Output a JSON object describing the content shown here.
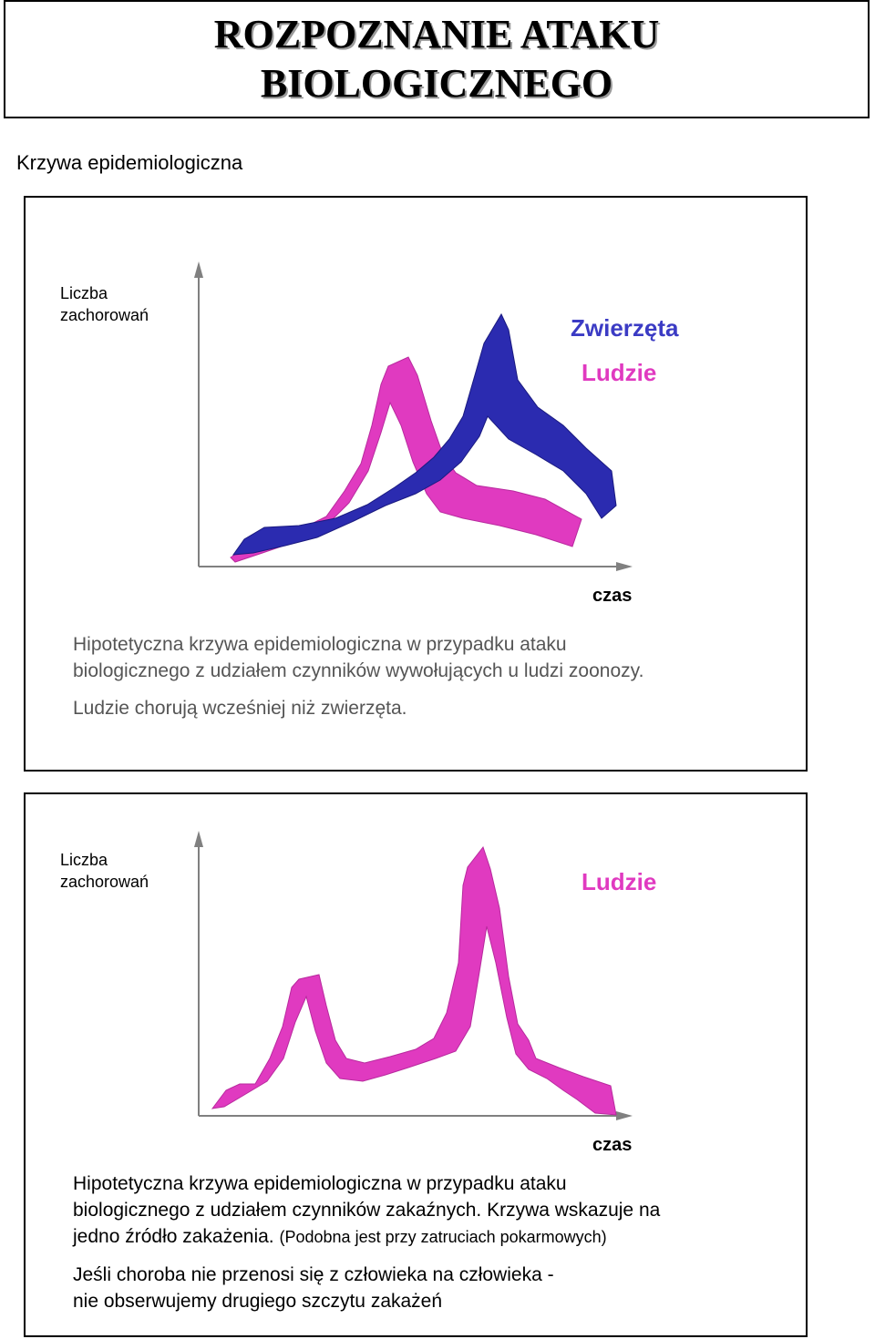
{
  "header": {
    "title_line1": "ROZPOZNANIE ATAKU",
    "title_line2": "BIOLOGICZNEGO"
  },
  "subtitle": "Krzywa epidemiologiczna",
  "colors": {
    "animals": "#2b2bb0",
    "humans": "#e03ac0",
    "caption_gray": "#555555"
  },
  "panel1": {
    "ylabel_line1": "Liczba",
    "ylabel_line2": "zachorowań",
    "xlabel": "czas",
    "legend_animals": "Zwierzęta",
    "legend_humans": "Ludzie",
    "caption_line1": "Hipotetyczna krzywa epidemiologiczna w  przypadku ataku",
    "caption_line2": "biologicznego z udziałem czynników wywołujących u ludzi zoonozy.",
    "caption_line3": "Ludzie chorują wcześniej niż zwierzęta."
  },
  "panel2": {
    "ylabel_line1": "Liczba",
    "ylabel_line2": "zachorowań",
    "xlabel": "czas",
    "legend_humans": "Ludzie",
    "caption_line1": "Hipotetyczna krzywa epidemiologiczna w  przypadku ataku",
    "caption_line2": "biologicznego z udziałem czynników zakaźnych. Krzywa wskazuje na",
    "caption_line3": "jedno źródło zakażenia.",
    "caption_line3_small": "(Podobna jest przy zatruciach pokarmowych)",
    "caption_line4": "Jeśli choroba nie przenosi się z człowieka na człowieka -",
    "caption_line5": "nie obserwujemy drugiego szczytu zakażeń"
  }
}
